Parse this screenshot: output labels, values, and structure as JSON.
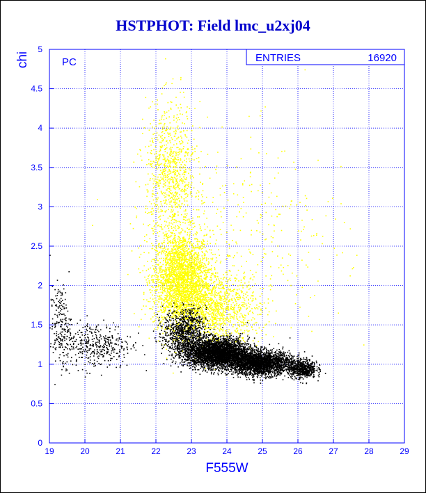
{
  "chart_data": {
    "type": "scatter",
    "title": "HSTPHOT: Field lmc_u2xj04",
    "xlabel": "F555W",
    "ylabel": "chi",
    "xlim": [
      19,
      29
    ],
    "ylim": [
      0,
      5
    ],
    "xticks": [
      "19",
      "20",
      "21",
      "22",
      "23",
      "24",
      "25",
      "26",
      "27",
      "28",
      "29"
    ],
    "yticks": [
      "0",
      "0.5",
      "1",
      "1.5",
      "2",
      "2.5",
      "3",
      "3.5",
      "4",
      "4.5",
      "5"
    ],
    "grid": true,
    "panel_label": "PC",
    "stats": {
      "label": "ENTRIES",
      "value": "16920"
    },
    "colors": {
      "axis": "#0000ff",
      "title": "#0000cc",
      "yellow_points": "#ffff00",
      "black_points": "#000000"
    },
    "series": [
      {
        "color": "#ffff00",
        "clusters": [
          {
            "x_center": 22.7,
            "x_spread": 0.8,
            "y_center": 2.1,
            "y_spread": 0.6,
            "n": 2600
          },
          {
            "x_center": 22.4,
            "x_spread": 0.7,
            "y_center": 3.4,
            "y_spread": 0.9,
            "n": 900
          },
          {
            "x_center": 23.6,
            "x_spread": 1.3,
            "y_center": 1.7,
            "y_spread": 0.45,
            "n": 1300
          },
          {
            "x_center": 24.5,
            "x_spread": 2.8,
            "y_center": 2.6,
            "y_spread": 1.3,
            "n": 350
          }
        ]
      },
      {
        "color": "#000000",
        "clusters": [
          {
            "x_center": 23.7,
            "x_spread": 0.9,
            "y_center": 1.15,
            "y_spread": 0.18,
            "n": 3400
          },
          {
            "x_center": 24.9,
            "x_spread": 0.9,
            "y_center": 1.02,
            "y_spread": 0.15,
            "n": 2600
          },
          {
            "x_center": 22.8,
            "x_spread": 0.6,
            "y_center": 1.4,
            "y_spread": 0.3,
            "n": 900
          },
          {
            "x_center": 20.3,
            "x_spread": 1.0,
            "y_center": 1.25,
            "y_spread": 0.3,
            "n": 380
          },
          {
            "x_center": 19.3,
            "x_spread": 0.3,
            "y_center": 1.5,
            "y_spread": 0.5,
            "n": 200
          },
          {
            "x_center": 26.1,
            "x_spread": 0.4,
            "y_center": 0.95,
            "y_spread": 0.12,
            "n": 600
          }
        ]
      }
    ]
  }
}
